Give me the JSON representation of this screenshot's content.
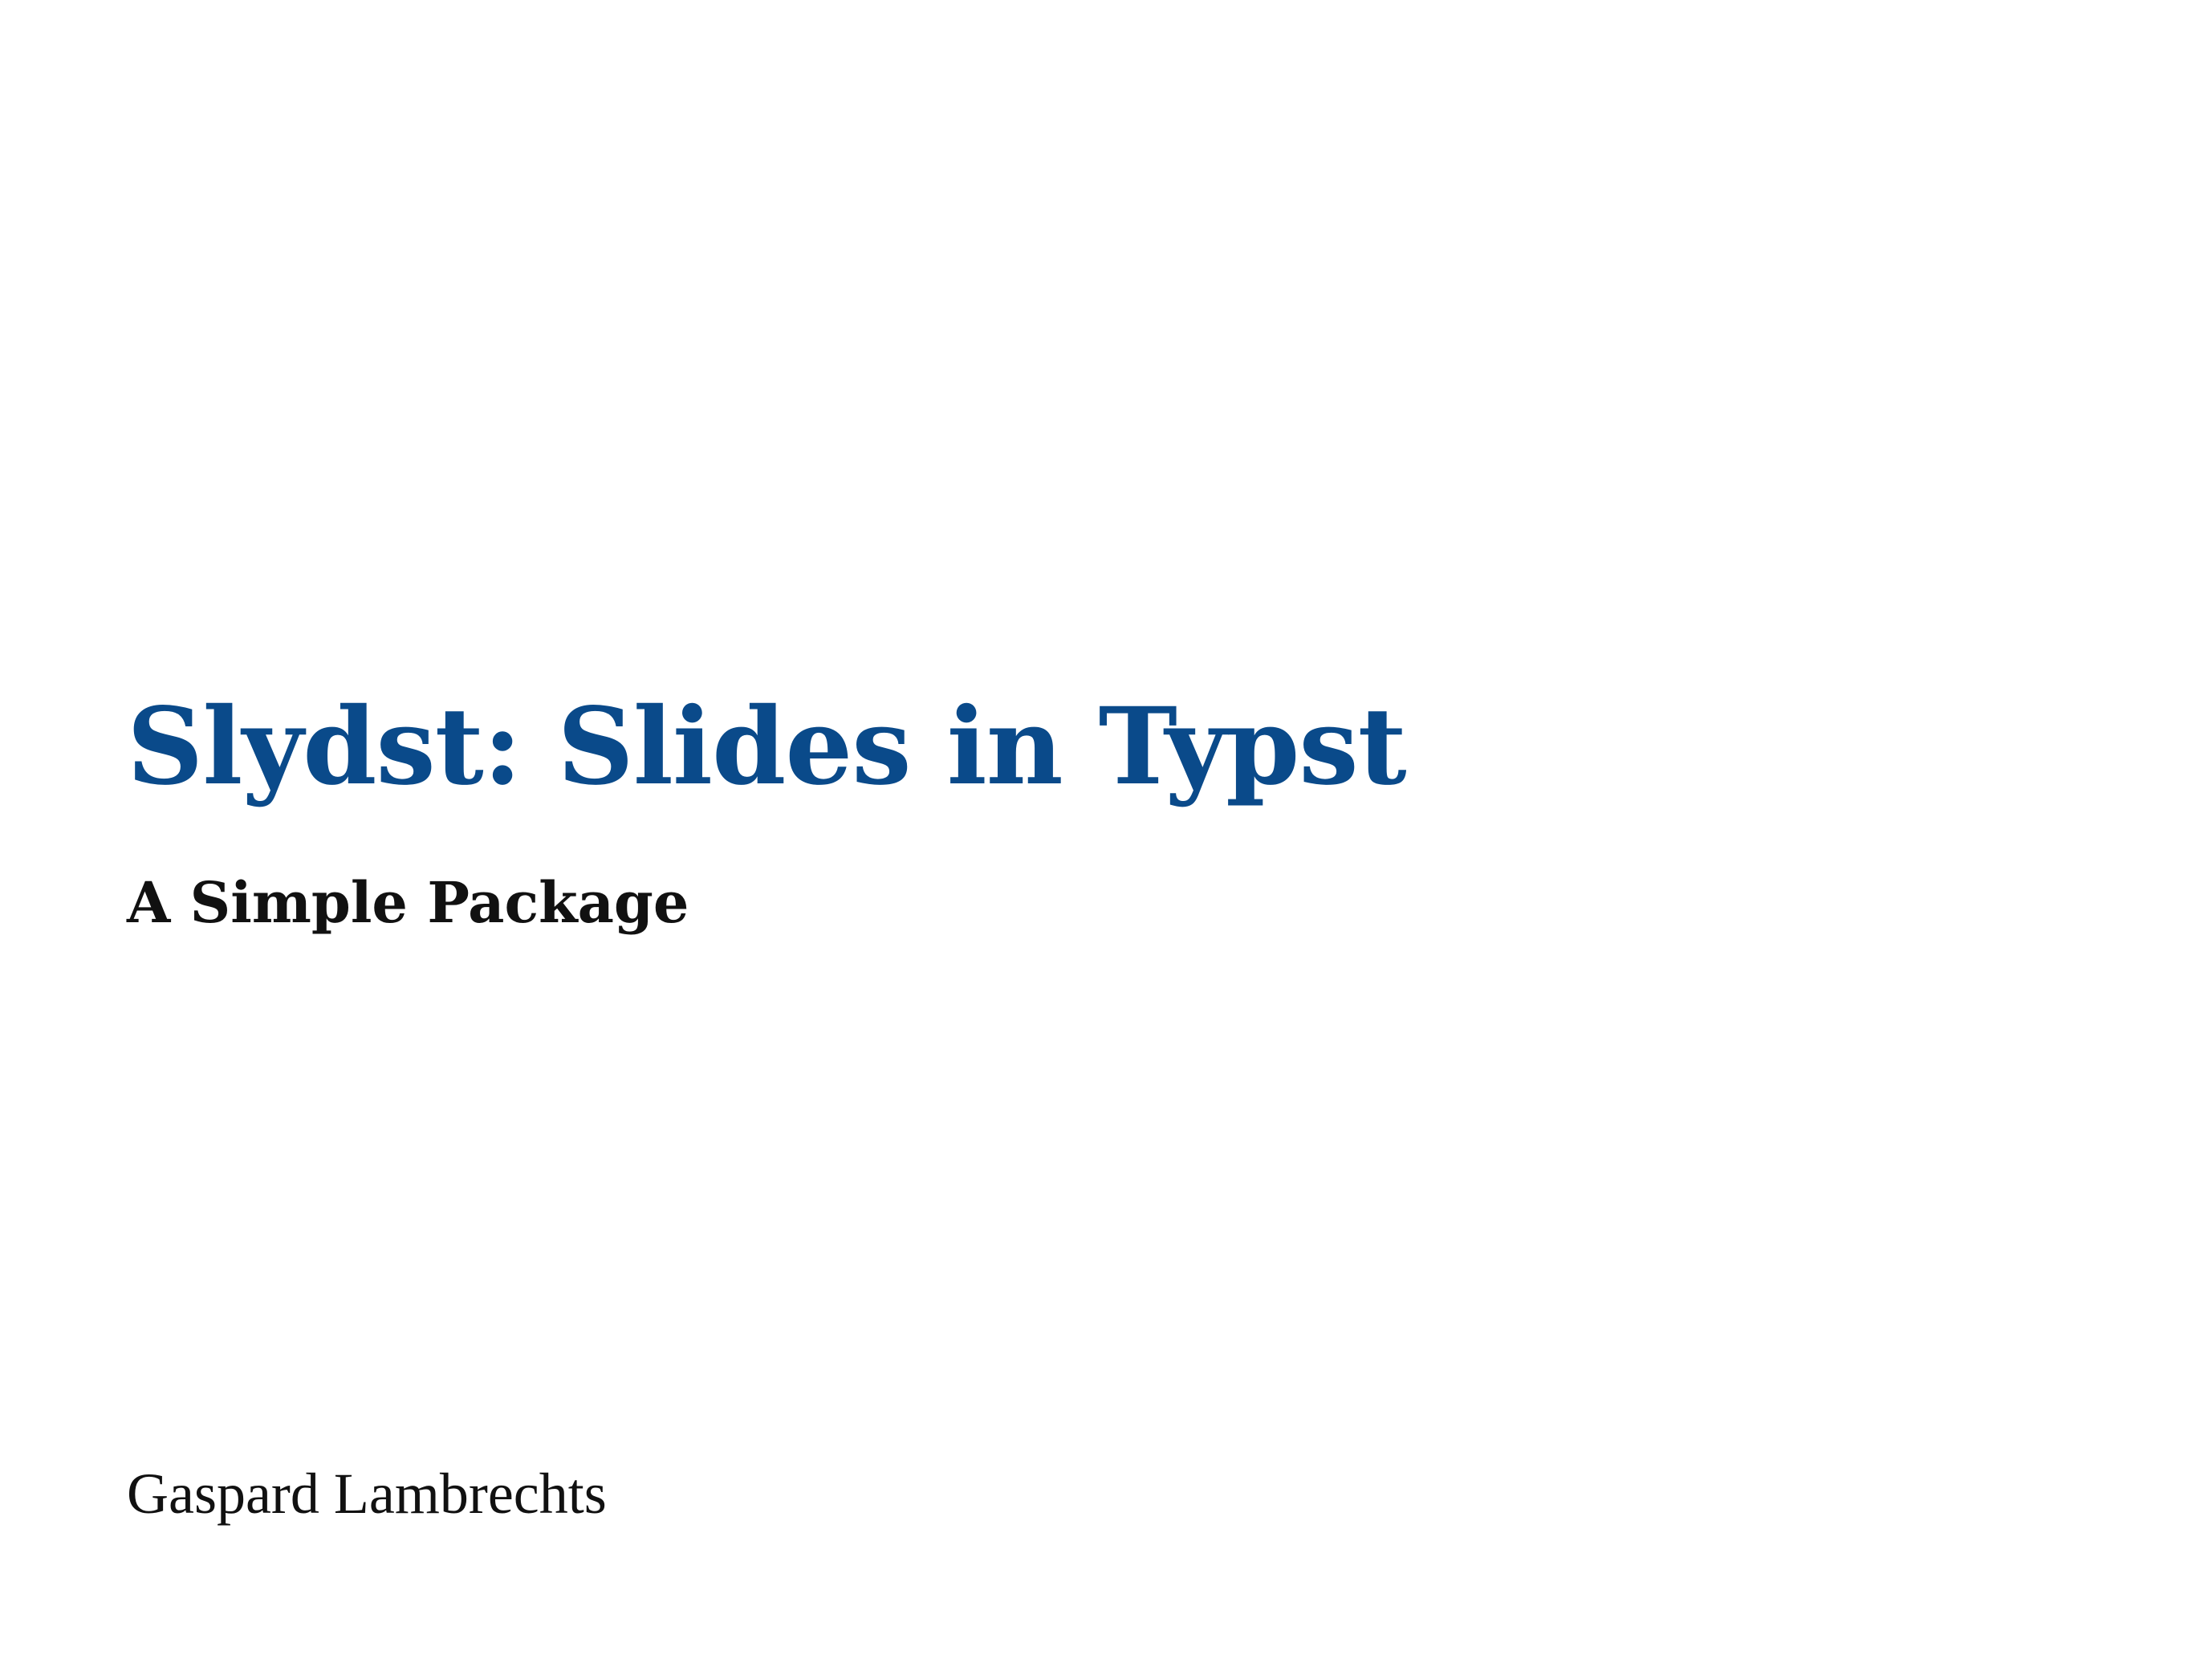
{
  "slide": {
    "title": "Slydst: Slides in Typst",
    "subtitle": "A Simple Package",
    "author": "Gaspard Lambrechts"
  },
  "colors": {
    "title": "#0a4a8a",
    "text": "#111111",
    "background": "#ffffff"
  }
}
